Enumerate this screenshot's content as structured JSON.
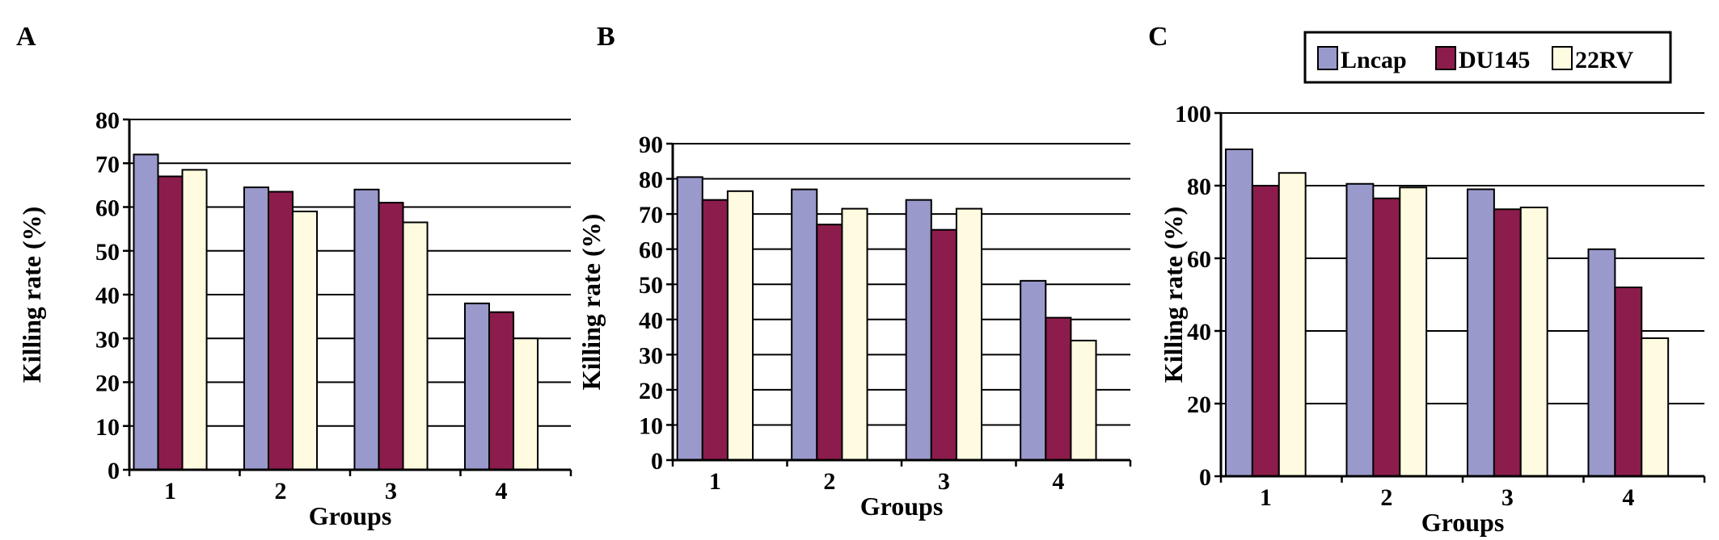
{
  "colors": {
    "Lncap": "#9999cc",
    "DU145": "#8c1c4c",
    "22RV": "#fffbe0"
  },
  "legend": [
    "Lncap",
    "DU145",
    "22RV"
  ],
  "chart_data": [
    {
      "panel": "A",
      "type": "bar",
      "categories": [
        "1",
        "2",
        "3",
        "4"
      ],
      "series": [
        {
          "name": "Lncap",
          "values": [
            72,
            64.5,
            64,
            38
          ]
        },
        {
          "name": "DU145",
          "values": [
            67,
            63.5,
            61,
            36
          ]
        },
        {
          "name": "22RV",
          "values": [
            68.5,
            59,
            56.5,
            30
          ]
        }
      ],
      "xlabel": "Groups",
      "ylabel": "Killing rate (%)",
      "ylim": [
        0,
        80
      ],
      "yticks": [
        0,
        10,
        20,
        30,
        40,
        50,
        60,
        70,
        80
      ],
      "grid": true
    },
    {
      "panel": "B",
      "type": "bar",
      "categories": [
        "1",
        "2",
        "3",
        "4"
      ],
      "series": [
        {
          "name": "Lncap",
          "values": [
            80.5,
            77,
            74,
            51
          ]
        },
        {
          "name": "DU145",
          "values": [
            74,
            67,
            65.5,
            40.5
          ]
        },
        {
          "name": "22RV",
          "values": [
            76.5,
            71.5,
            71.5,
            34
          ]
        }
      ],
      "xlabel": "Groups",
      "ylabel": "Killing rate (%)",
      "ylim": [
        0,
        90
      ],
      "yticks": [
        0,
        10,
        20,
        30,
        40,
        50,
        60,
        70,
        80,
        90
      ],
      "grid": true
    },
    {
      "panel": "C",
      "type": "bar",
      "categories": [
        "1",
        "2",
        "3",
        "4"
      ],
      "series": [
        {
          "name": "Lncap",
          "values": [
            90,
            80.5,
            79,
            62.5
          ]
        },
        {
          "name": "DU145",
          "values": [
            80,
            76.5,
            73.5,
            52
          ]
        },
        {
          "name": "22RV",
          "values": [
            83.5,
            79.5,
            74,
            38
          ]
        }
      ],
      "xlabel": "Groups",
      "ylabel": "Killing rate (%)",
      "ylim": [
        0,
        100
      ],
      "yticks": [
        0,
        20,
        40,
        60,
        80,
        100
      ],
      "grid": true,
      "legend_position": "top-right"
    }
  ]
}
